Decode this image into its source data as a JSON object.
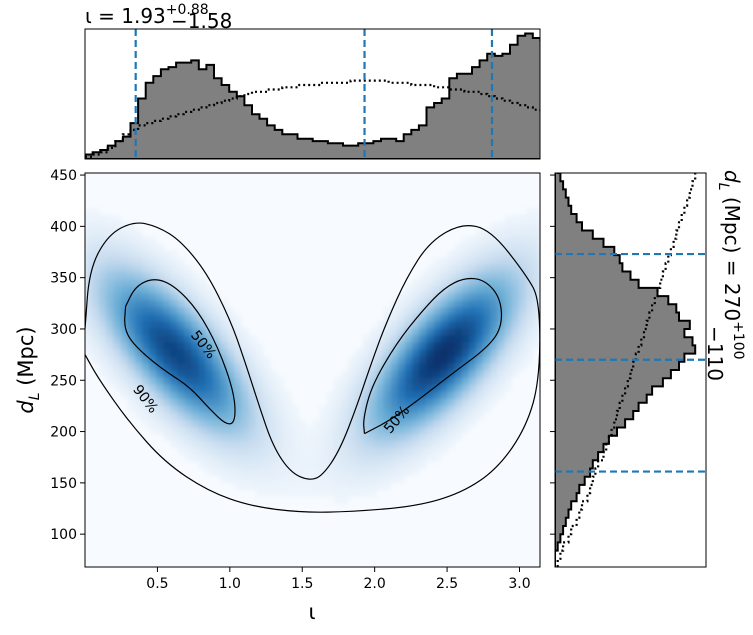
{
  "chart_data": [
    {
      "type": "heatmap",
      "panel": "joint",
      "xlabel": "ι",
      "ylabel_main": "d",
      "ylabel_sub": "L",
      "ylabel_unit": "(Mpc)",
      "xlim": [
        0.0,
        3.1416
      ],
      "ylim": [
        68,
        452
      ],
      "xticks": [
        0.5,
        1.0,
        1.5,
        2.0,
        2.5,
        3.0
      ],
      "xtick_labels": [
        "0.5",
        "1.0",
        "1.5",
        "2.0",
        "2.5",
        "3.0"
      ],
      "yticks": [
        100,
        150,
        200,
        250,
        300,
        350,
        400,
        450
      ],
      "ytick_labels": [
        "100",
        "150",
        "200",
        "250",
        "300",
        "350",
        "400",
        "450"
      ],
      "colormap": [
        "#f7fbff",
        "#c6dbef",
        "#6baed6",
        "#2171b5",
        "#08306b"
      ],
      "density_peaks": [
        {
          "x": 0.62,
          "y": 278,
          "weight": 0.9
        },
        {
          "x": 2.47,
          "y": 275,
          "weight": 1.0
        }
      ],
      "contour_labels": [
        "50%",
        "90%"
      ],
      "contours": [
        {
          "level": "50%",
          "label_position": {
            "x": 0.82,
            "y": 285,
            "angle": 52
          },
          "points": [
            [
              0.28,
              322
            ],
            [
              0.35,
              342
            ],
            [
              0.48,
              350
            ],
            [
              0.62,
              342
            ],
            [
              0.78,
              318
            ],
            [
              0.92,
              282
            ],
            [
              1.03,
              238
            ],
            [
              1.04,
              210
            ],
            [
              0.98,
              206
            ],
            [
              0.86,
              222
            ],
            [
              0.72,
              244
            ],
            [
              0.52,
              262
            ],
            [
              0.34,
              284
            ],
            [
              0.27,
              300
            ],
            [
              0.28,
              322
            ]
          ]
        },
        {
          "level": "50%",
          "label_position": {
            "x": 2.15,
            "y": 212,
            "angle": -50
          },
          "points": [
            [
              1.93,
              198
            ],
            [
              2.12,
              212
            ],
            [
              2.35,
              236
            ],
            [
              2.55,
              258
            ],
            [
              2.78,
              282
            ],
            [
              2.88,
              302
            ],
            [
              2.87,
              330
            ],
            [
              2.76,
              348
            ],
            [
              2.62,
              350
            ],
            [
              2.48,
              340
            ],
            [
              2.33,
              318
            ],
            [
              2.15,
              286
            ],
            [
              1.98,
              245
            ],
            [
              1.92,
              212
            ],
            [
              1.93,
              198
            ]
          ]
        },
        {
          "level": "90%",
          "label_position": {
            "x": 0.42,
            "y": 232,
            "angle": 52
          },
          "points": [
            [
              0.0,
              300
            ],
            [
              0.03,
              358
            ],
            [
              0.16,
              392
            ],
            [
              0.34,
              405
            ],
            [
              0.5,
              400
            ],
            [
              0.66,
              386
            ],
            [
              0.84,
              355
            ],
            [
              1.0,
              310
            ],
            [
              1.1,
              270
            ],
            [
              1.2,
              226
            ],
            [
              1.3,
              185
            ],
            [
              1.42,
              160
            ],
            [
              1.55,
              152
            ],
            [
              1.64,
              157
            ],
            [
              1.76,
              182
            ],
            [
              1.88,
              226
            ],
            [
              1.98,
              268
            ],
            [
              2.08,
              306
            ],
            [
              2.22,
              350
            ],
            [
              2.38,
              385
            ],
            [
              2.6,
              403
            ],
            [
              2.8,
              397
            ],
            [
              3.05,
              352
            ],
            [
              3.14,
              328
            ],
            [
              3.14,
              252
            ],
            [
              3.05,
              205
            ],
            [
              2.85,
              164
            ],
            [
              2.6,
              140
            ],
            [
              2.28,
              127
            ],
            [
              1.85,
              122
            ],
            [
              1.5,
              121
            ],
            [
              1.15,
              127
            ],
            [
              0.85,
              142
            ],
            [
              0.55,
              170
            ],
            [
              0.3,
              210
            ],
            [
              0.1,
              250
            ],
            [
              0.0,
              275
            ]
          ]
        }
      ]
    },
    {
      "type": "bar",
      "panel": "top-marginal",
      "title_main": "ι = 1.93",
      "title_sup": "+0.88",
      "title_sub": "−1.58",
      "xlim": [
        0.0,
        3.1416
      ],
      "bin_width": 0.0524,
      "fill_color": "#808080",
      "posterior_counts": [
        2,
        3,
        4,
        6,
        8,
        10,
        16,
        27,
        34,
        37,
        40,
        41,
        43,
        43,
        44,
        40,
        42,
        36,
        33,
        30,
        28,
        24,
        20,
        18,
        15,
        13,
        11,
        11,
        9,
        9,
        8,
        8,
        7,
        7,
        6,
        6,
        7,
        7,
        8,
        9,
        9,
        8,
        11,
        13,
        15,
        23,
        25,
        27,
        36,
        38,
        38,
        41,
        44,
        47,
        46,
        47,
        51,
        55,
        56,
        54,
        53,
        45,
        35,
        25,
        11,
        11,
        3,
        1,
        0,
        0
      ],
      "prior_counts": [
        1,
        2,
        3,
        5,
        8,
        11,
        13,
        15,
        16,
        17,
        18,
        19,
        20,
        21,
        22,
        23,
        24,
        25,
        26,
        27,
        28,
        29,
        30,
        30,
        31,
        31,
        32,
        32,
        33,
        33,
        33,
        34,
        34,
        34,
        34,
        35,
        35,
        35,
        35,
        35,
        34,
        34,
        34,
        33,
        33,
        33,
        32,
        32,
        31,
        31,
        30,
        30,
        29,
        28,
        27,
        26,
        25,
        24,
        23,
        22,
        21,
        19,
        17,
        15,
        13,
        11,
        8,
        5,
        3,
        1
      ],
      "ylim": [
        0,
        58
      ],
      "markers": [
        0.35,
        1.93,
        2.81
      ]
    },
    {
      "type": "bar",
      "panel": "right-marginal",
      "title": "d_L (Mpc) = 270 +100 −110",
      "title_main": "(Mpc) = 270",
      "title_sub_d": "d",
      "title_sub_L": "L",
      "title_sup": "+100",
      "title_sub": "−110",
      "ylim": [
        68,
        452
      ],
      "bin_edges_start": 68,
      "bin_width": 8,
      "fill_color": "#808080",
      "posterior_counts": [
        0,
        0,
        1,
        2,
        3,
        4,
        5,
        6,
        8,
        9,
        11,
        13,
        14,
        16,
        18,
        20,
        23,
        26,
        29,
        31,
        34,
        36,
        40,
        43,
        46,
        48,
        52,
        51,
        48,
        50,
        46,
        45,
        42,
        38,
        31,
        28,
        25,
        24,
        22,
        18,
        14,
        10,
        8,
        6,
        5,
        4,
        3,
        2,
        1,
        1
      ],
      "prior_counts": [
        1,
        2,
        3,
        5,
        6,
        8,
        9,
        10,
        12,
        13,
        14,
        15,
        16,
        18,
        19,
        20,
        21,
        22,
        23,
        24,
        25,
        26,
        27,
        28,
        29,
        30,
        31,
        32,
        33,
        34,
        35,
        36,
        37,
        38,
        39,
        40,
        41,
        42,
        43,
        44,
        45,
        46,
        47,
        48,
        49,
        50,
        51,
        52,
        53,
        54
      ],
      "xlim": [
        0,
        56
      ],
      "markers": [
        161,
        270,
        373
      ]
    }
  ]
}
